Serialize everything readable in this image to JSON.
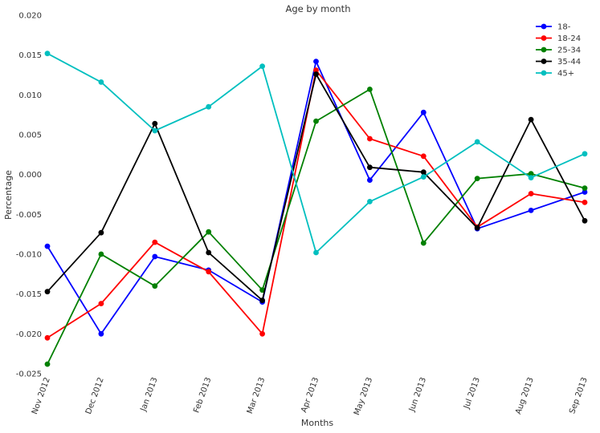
{
  "chart_data": {
    "type": "line",
    "title": "Age by month",
    "xlabel": "Months",
    "ylabel": "Percentage",
    "categories": [
      "Nov 2012",
      "Dec 2012",
      "Jan 2013",
      "Feb 2013",
      "Mar 2013",
      "Apr 2013",
      "May 2013",
      "Jun 2013",
      "Jul 2013",
      "Aug 2013",
      "Sep 2013"
    ],
    "ylim": [
      -0.025,
      0.02
    ],
    "yticks": [
      "0.020",
      "0.015",
      "0.010",
      "0.005",
      "0.000",
      "-0.005",
      "-0.010",
      "-0.015",
      "-0.020",
      "-0.025"
    ],
    "grid": false,
    "legend_position": "top-right",
    "series": [
      {
        "name": "18-",
        "color": "#0000ff",
        "values": [
          -0.009,
          -0.02,
          -0.0103,
          -0.012,
          -0.016,
          0.0142,
          -0.0007,
          0.0078,
          -0.0068,
          -0.0045,
          -0.0022
        ]
      },
      {
        "name": "18-24",
        "color": "#ff0000",
        "values": [
          -0.0205,
          -0.0162,
          -0.0085,
          -0.0122,
          -0.02,
          0.0131,
          0.0045,
          0.0023,
          -0.0066,
          -0.0024,
          -0.0035
        ]
      },
      {
        "name": "25-34",
        "color": "#008000",
        "values": [
          -0.0238,
          -0.01,
          -0.014,
          -0.0072,
          -0.0145,
          0.0067,
          0.0107,
          -0.0086,
          -0.0005,
          0.0001,
          -0.0017
        ]
      },
      {
        "name": "35-44",
        "color": "#000000",
        "values": [
          -0.0147,
          -0.0073,
          0.0064,
          -0.0098,
          -0.0158,
          0.0126,
          0.0009,
          0.0003,
          -0.0067,
          0.0069,
          -0.0058
        ]
      },
      {
        "name": "45+",
        "color": "#00bfbf",
        "values": [
          0.0152,
          0.0116,
          0.0055,
          0.0085,
          0.0136,
          -0.0098,
          -0.0034,
          -0.0003,
          0.0041,
          -0.0004,
          0.0026
        ]
      }
    ]
  }
}
